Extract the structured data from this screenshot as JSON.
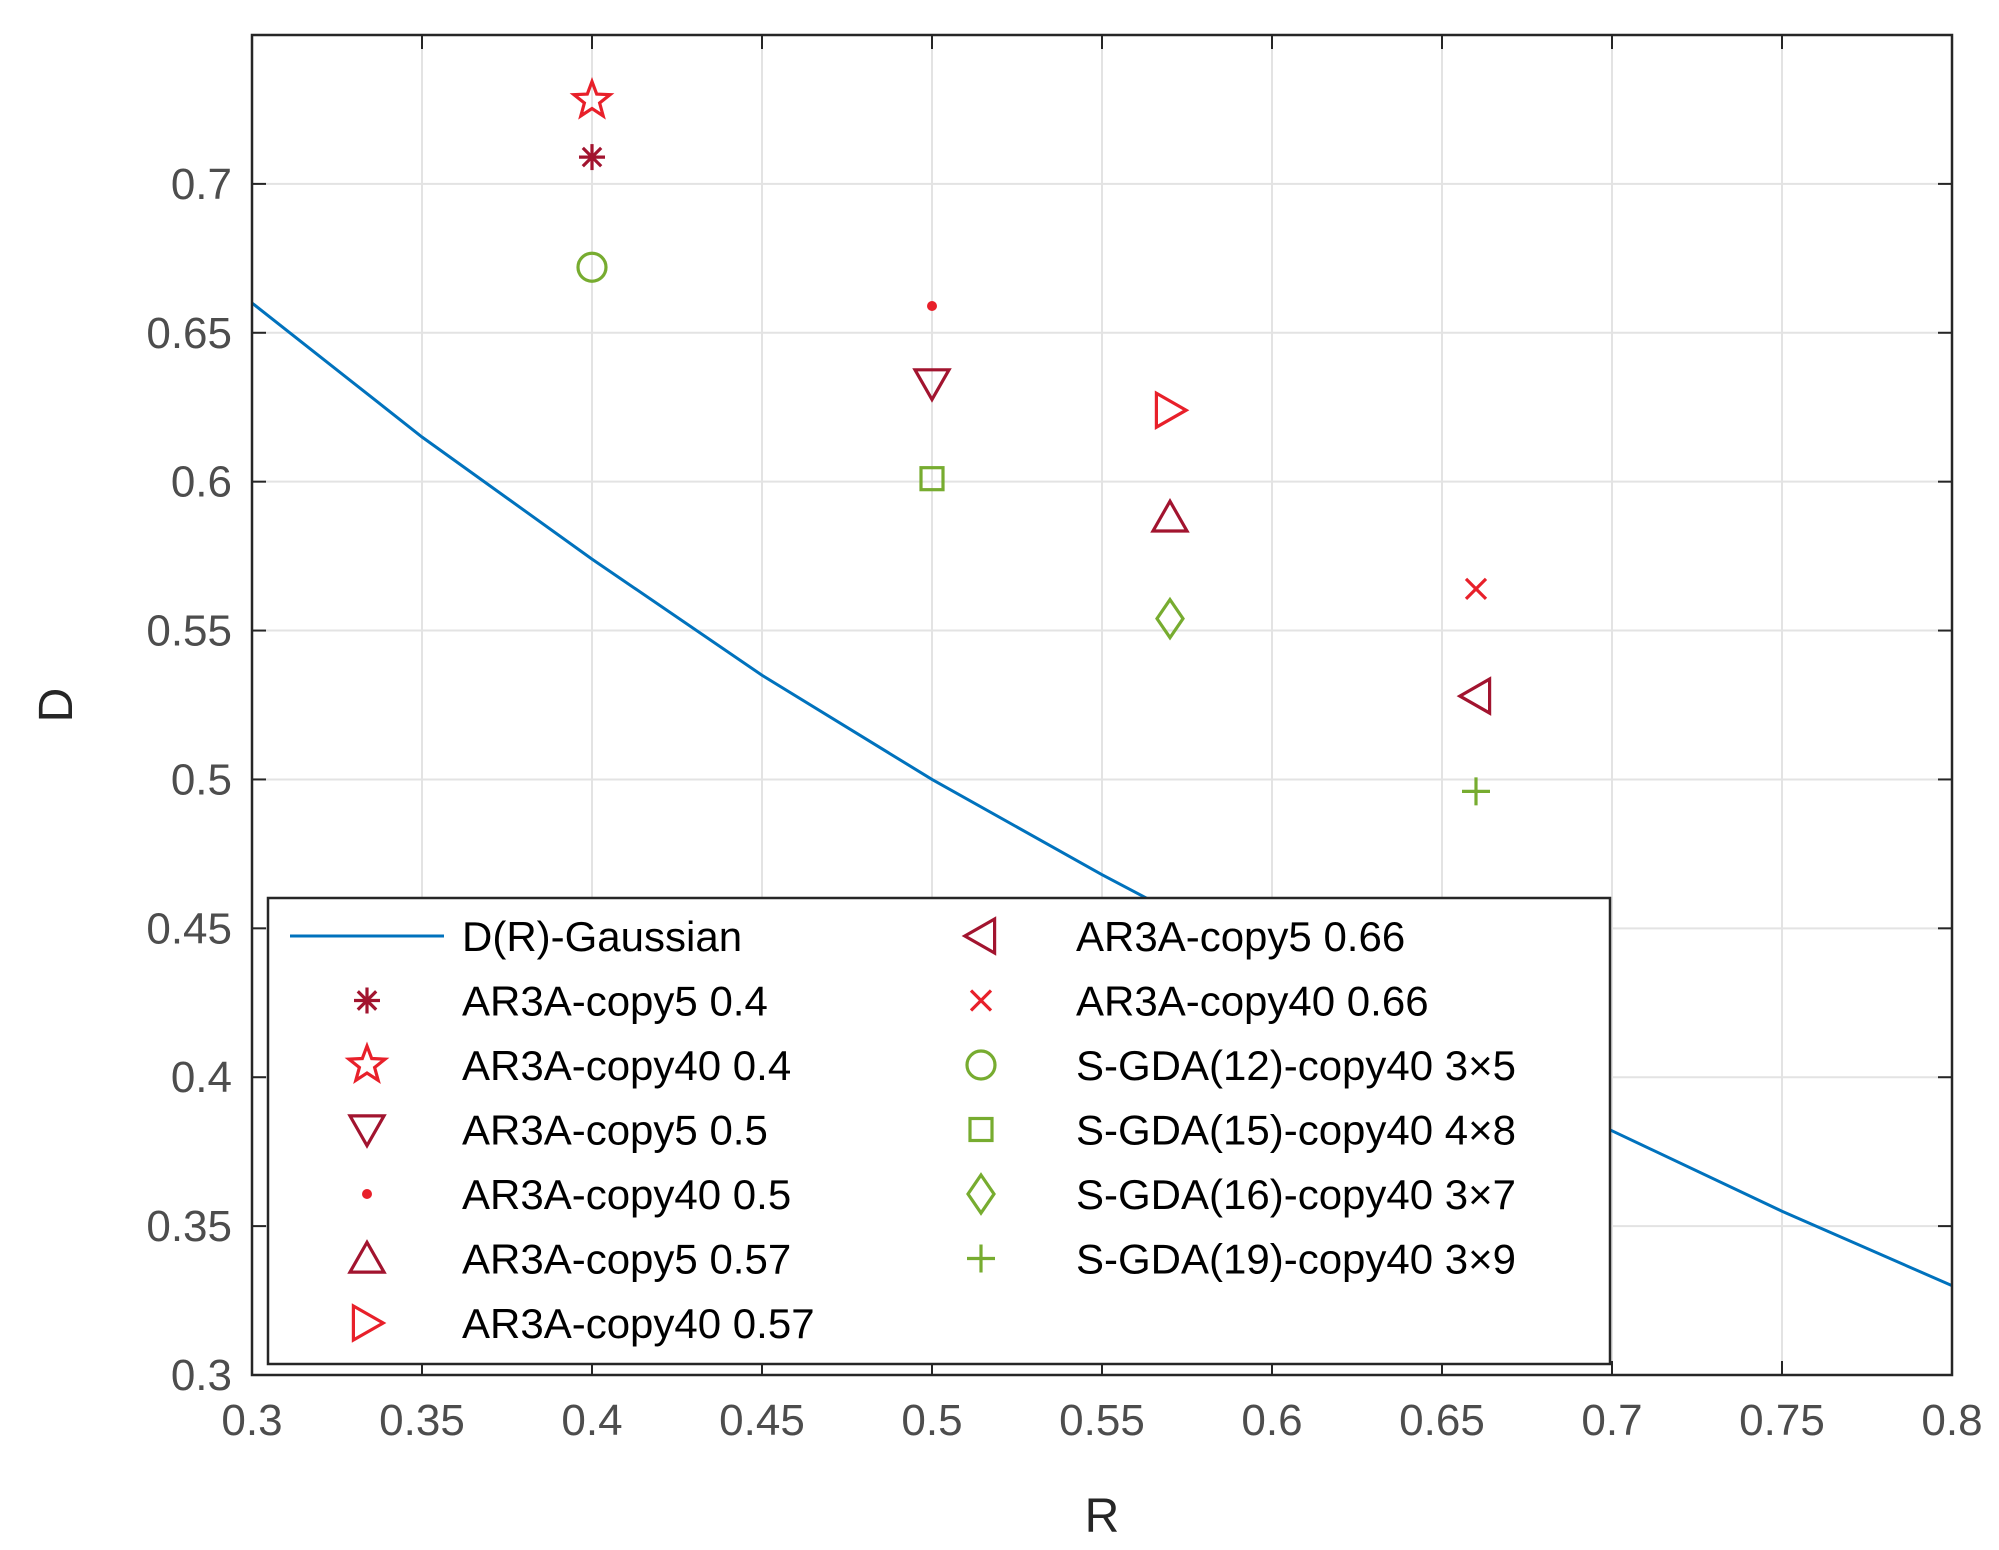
{
  "chart_data": {
    "type": "scatter",
    "title": "",
    "xlabel": "R",
    "ylabel": "D",
    "xlim": [
      0.3,
      0.8
    ],
    "ylim": [
      0.3,
      0.75
    ],
    "xticks": [
      0.3,
      0.35,
      0.4,
      0.45,
      0.5,
      0.55,
      0.6,
      0.65,
      0.7,
      0.75,
      0.8
    ],
    "xtick_labels": [
      "0.3",
      "0.35",
      "0.4",
      "0.45",
      "0.5",
      "0.55",
      "0.6",
      "0.65",
      "0.7",
      "0.75",
      "0.8"
    ],
    "yticks": [
      0.3,
      0.35,
      0.4,
      0.45,
      0.5,
      0.55,
      0.6,
      0.65,
      0.7
    ],
    "ytick_labels": [
      "0.3",
      "0.35",
      "0.4",
      "0.45",
      "0.5",
      "0.55",
      "0.6",
      "0.65",
      "0.7"
    ],
    "grid": true,
    "legend_position": "bottom-left",
    "series": [
      {
        "name": "D(R)-Gaussian",
        "kind": "line",
        "color": "#0072BD",
        "x": [
          0.3,
          0.35,
          0.4,
          0.45,
          0.5,
          0.55,
          0.6,
          0.65,
          0.7,
          0.75,
          0.8
        ],
        "y": [
          0.66,
          0.615,
          0.574,
          0.535,
          0.5,
          0.468,
          0.438,
          0.409,
          0.382,
          0.355,
          0.33
        ]
      },
      {
        "name": "AR3A-copy5 0.4",
        "kind": "marker",
        "marker": "asterisk",
        "color": "#A2142F",
        "x": [
          0.4
        ],
        "y": [
          0.709
        ]
      },
      {
        "name": "AR3A-copy40 0.4",
        "kind": "marker",
        "marker": "star",
        "color": "#E8202A",
        "x": [
          0.4
        ],
        "y": [
          0.728
        ]
      },
      {
        "name": "AR3A-copy5 0.5",
        "kind": "marker",
        "marker": "triangle-down",
        "color": "#A2142F",
        "x": [
          0.5
        ],
        "y": [
          0.633
        ]
      },
      {
        "name": "AR3A-copy40 0.5",
        "kind": "marker",
        "marker": "dot",
        "color": "#E8202A",
        "x": [
          0.5
        ],
        "y": [
          0.659
        ]
      },
      {
        "name": "AR3A-copy5 0.57",
        "kind": "marker",
        "marker": "triangle-up",
        "color": "#A2142F",
        "x": [
          0.57
        ],
        "y": [
          0.588
        ]
      },
      {
        "name": "AR3A-copy40 0.57",
        "kind": "marker",
        "marker": "triangle-right",
        "color": "#E8202A",
        "x": [
          0.57
        ],
        "y": [
          0.624
        ]
      },
      {
        "name": "AR3A-copy5 0.66",
        "kind": "marker",
        "marker": "triangle-left",
        "color": "#A2142F",
        "x": [
          0.66
        ],
        "y": [
          0.528
        ]
      },
      {
        "name": "AR3A-copy40 0.66",
        "kind": "marker",
        "marker": "x",
        "color": "#E8202A",
        "x": [
          0.66
        ],
        "y": [
          0.564
        ]
      },
      {
        "name": "S-GDA(12)-copy40 3×5",
        "kind": "marker",
        "marker": "circle",
        "color": "#77AC30",
        "x": [
          0.4
        ],
        "y": [
          0.672
        ]
      },
      {
        "name": "S-GDA(15)-copy40 4×8",
        "kind": "marker",
        "marker": "square",
        "color": "#77AC30",
        "x": [
          0.5
        ],
        "y": [
          0.601
        ]
      },
      {
        "name": "S-GDA(16)-copy40 3×7",
        "kind": "marker",
        "marker": "diamond",
        "color": "#77AC30",
        "x": [
          0.57
        ],
        "y": [
          0.554
        ]
      },
      {
        "name": "S-GDA(19)-copy40 3×9",
        "kind": "marker",
        "marker": "plus",
        "color": "#77AC30",
        "x": [
          0.66
        ],
        "y": [
          0.496
        ]
      }
    ]
  }
}
